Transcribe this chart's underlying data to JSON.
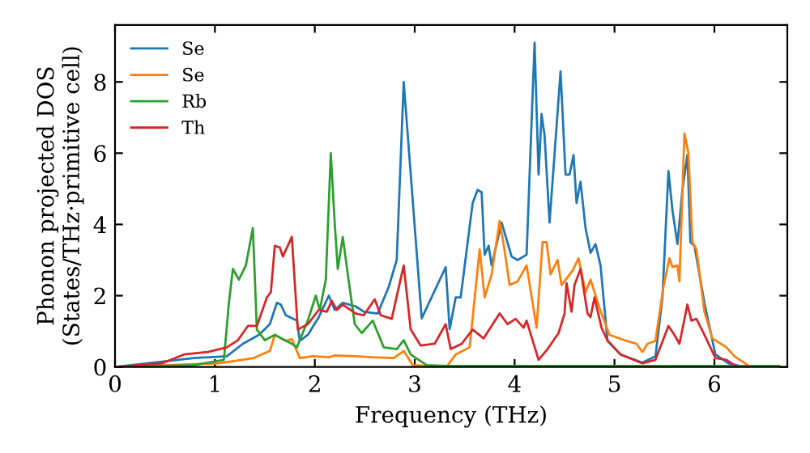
{
  "chart_data": {
    "type": "line",
    "xlabel": "Frequency (THz)",
    "ylabel": "Phonon projected DOS\n(States/THz·primitive cell)",
    "xlim": [
      0,
      6.73
    ],
    "ylim": [
      0,
      9.6
    ],
    "xticks": [
      0,
      1,
      2,
      3,
      4,
      5,
      6
    ],
    "yticks": [
      0,
      2,
      4,
      6,
      8
    ],
    "grid": false,
    "legend": "top left",
    "series": [
      {
        "name": "Se",
        "color": "#1f77b4",
        "x": [
          0,
          0.63,
          0.79,
          1.12,
          1.28,
          1.44,
          1.55,
          1.62,
          1.66,
          1.71,
          1.82,
          1.85,
          1.93,
          2.04,
          2.14,
          2.2,
          2.28,
          2.41,
          2.49,
          2.63,
          2.74,
          2.82,
          2.89,
          3.07,
          3.31,
          3.35,
          3.41,
          3.46,
          3.58,
          3.63,
          3.67,
          3.7,
          3.74,
          3.77,
          3.87,
          3.97,
          4.03,
          4.12,
          4.2,
          4.24,
          4.27,
          4.3,
          4.35,
          4.46,
          4.51,
          4.55,
          4.59,
          4.62,
          4.66,
          4.71,
          4.76,
          4.81,
          4.86,
          4.93,
          5.06,
          5.28,
          5.41,
          5.48,
          5.54,
          5.58,
          5.63,
          5.68,
          5.73,
          5.76,
          5.8,
          5.9,
          6.01,
          6.14,
          6.3
        ],
        "values": [
          0,
          0.2,
          0.25,
          0.3,
          0.65,
          0.9,
          1.2,
          1.8,
          1.75,
          1.45,
          1.3,
          0.73,
          0.9,
          1.4,
          2.0,
          1.6,
          1.8,
          1.7,
          1.55,
          1.5,
          2.25,
          3.0,
          8.0,
          1.36,
          2.8,
          1.06,
          1.95,
          1.95,
          4.6,
          4.97,
          4.9,
          3.15,
          3.4,
          2.85,
          4.05,
          3.1,
          3.0,
          3.15,
          9.1,
          5.4,
          7.1,
          6.5,
          4.05,
          8.3,
          5.4,
          5.4,
          5.95,
          4.6,
          5.2,
          3.9,
          3.2,
          3.45,
          2.85,
          0.73,
          0.35,
          0.12,
          0.3,
          1.95,
          5.5,
          4.4,
          3.45,
          4.97,
          5.95,
          3.5,
          3.4,
          1.8,
          0.35,
          0.1,
          0
        ]
      },
      {
        "name": "Se",
        "color": "#ff7f0e",
        "x": [
          0,
          1.04,
          1.39,
          1.55,
          1.6,
          1.71,
          1.77,
          1.85,
          1.98,
          2.14,
          2.2,
          2.41,
          2.58,
          2.79,
          2.89,
          2.98,
          3.32,
          3.41,
          3.55,
          3.65,
          3.7,
          3.77,
          3.85,
          3.89,
          3.95,
          4.03,
          4.12,
          4.22,
          4.28,
          4.32,
          4.36,
          4.43,
          4.47,
          4.58,
          4.64,
          4.71,
          4.76,
          4.85,
          4.95,
          5.12,
          5.22,
          5.28,
          5.33,
          5.41,
          5.49,
          5.55,
          5.58,
          5.63,
          5.65,
          5.7,
          5.74,
          5.78,
          5.82,
          5.9,
          5.98,
          6.12,
          6.2,
          6.36
        ],
        "values": [
          0,
          0.1,
          0.25,
          0.45,
          0.9,
          0.73,
          0.78,
          0.25,
          0.3,
          0.27,
          0.32,
          0.3,
          0.27,
          0.25,
          0.45,
          0.05,
          0,
          0.35,
          0.55,
          3.3,
          1.95,
          2.6,
          4.1,
          3.45,
          2.3,
          2.4,
          2.85,
          1.1,
          3.5,
          3.5,
          2.6,
          3.0,
          2.3,
          2.7,
          3.05,
          2.1,
          2.45,
          1.65,
          0.9,
          0.73,
          0.65,
          0.42,
          0.65,
          0.73,
          2.25,
          3.05,
          2.8,
          2.85,
          2.4,
          6.55,
          6.0,
          3.5,
          3.3,
          1.55,
          0.8,
          0.55,
          0.3,
          0
        ]
      },
      {
        "name": "Rb",
        "color": "#2ca02c",
        "x": [
          0,
          0.79,
          1.09,
          1.14,
          1.18,
          1.24,
          1.31,
          1.38,
          1.42,
          1.5,
          1.6,
          1.77,
          1.82,
          1.93,
          2.01,
          2.05,
          2.11,
          2.16,
          2.2,
          2.23,
          2.28,
          2.34,
          2.4,
          2.47,
          2.58,
          2.69,
          2.82,
          2.89,
          2.96,
          3.12,
          3.32,
          6.65
        ],
        "values": [
          0,
          0.05,
          0.2,
          1.8,
          2.75,
          2.45,
          2.85,
          3.9,
          1.05,
          0.75,
          0.9,
          0.65,
          0.55,
          1.3,
          2.0,
          1.6,
          2.45,
          6.0,
          4.0,
          2.75,
          3.65,
          2.4,
          1.2,
          0.95,
          1.3,
          0.55,
          0.5,
          0.75,
          0.35,
          0.05,
          0.03,
          0.03
        ]
      },
      {
        "name": "Th",
        "color": "#d62728",
        "x": [
          0,
          0.47,
          0.69,
          0.93,
          1.12,
          1.23,
          1.33,
          1.42,
          1.52,
          1.56,
          1.6,
          1.65,
          1.68,
          1.77,
          1.83,
          1.93,
          2.04,
          2.12,
          2.17,
          2.22,
          2.28,
          2.41,
          2.49,
          2.6,
          2.66,
          2.77,
          2.89,
          2.96,
          3.06,
          3.2,
          3.31,
          3.36,
          3.47,
          3.58,
          3.69,
          3.85,
          3.93,
          4.01,
          4.09,
          4.12,
          4.24,
          4.33,
          4.44,
          4.5,
          4.52,
          4.57,
          4.6,
          4.66,
          4.73,
          4.76,
          4.8,
          4.87,
          4.93,
          5.06,
          5.28,
          5.41,
          5.54,
          5.6,
          5.65,
          5.73,
          5.77,
          5.82,
          5.9,
          6.01,
          6.12,
          6.23
        ],
        "values": [
          0,
          0.1,
          0.35,
          0.42,
          0.55,
          0.75,
          1.15,
          1.15,
          1.95,
          2.1,
          3.4,
          3.35,
          3.1,
          3.65,
          1.05,
          1.2,
          1.6,
          1.55,
          1.85,
          1.6,
          1.75,
          1.5,
          1.45,
          1.9,
          1.45,
          1.35,
          2.85,
          1.05,
          0.6,
          0.65,
          1.2,
          0.5,
          0.65,
          1.05,
          0.8,
          1.5,
          1.2,
          1.35,
          1.1,
          1.3,
          0.2,
          0.5,
          0.95,
          1.5,
          2.35,
          1.55,
          2.3,
          2.75,
          1.5,
          1.4,
          1.95,
          1.1,
          0.75,
          0.35,
          0.1,
          0.2,
          1.15,
          0.9,
          0.65,
          1.75,
          1.3,
          1.35,
          0.9,
          0.25,
          0.2,
          0
        ]
      }
    ]
  }
}
